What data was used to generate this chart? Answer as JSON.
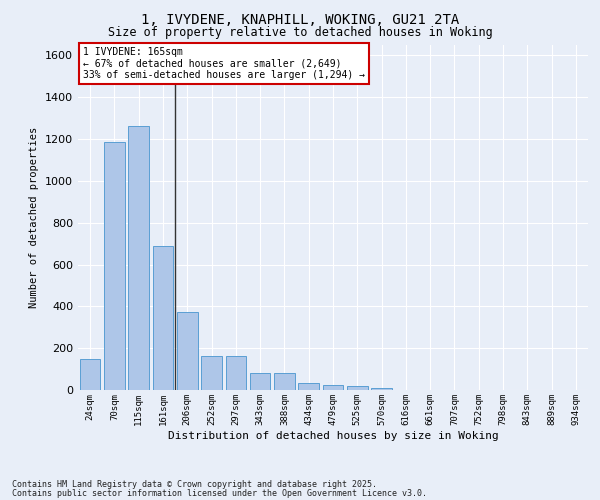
{
  "title_line1": "1, IVYDENE, KNAPHILL, WOKING, GU21 2TA",
  "title_line2": "Size of property relative to detached houses in Woking",
  "xlabel": "Distribution of detached houses by size in Woking",
  "ylabel": "Number of detached properties",
  "categories": [
    "24sqm",
    "70sqm",
    "115sqm",
    "161sqm",
    "206sqm",
    "252sqm",
    "297sqm",
    "343sqm",
    "388sqm",
    "434sqm",
    "479sqm",
    "525sqm",
    "570sqm",
    "616sqm",
    "661sqm",
    "707sqm",
    "752sqm",
    "798sqm",
    "843sqm",
    "889sqm",
    "934sqm"
  ],
  "values": [
    150,
    1185,
    1265,
    690,
    375,
    165,
    165,
    80,
    80,
    35,
    25,
    20,
    10,
    0,
    0,
    0,
    0,
    0,
    0,
    0,
    0
  ],
  "bar_color": "#aec6e8",
  "bar_edge_color": "#5a9fd4",
  "background_color": "#e8eef8",
  "grid_color": "#ffffff",
  "annotation_text": "1 IVYDENE: 165sqm\n← 67% of detached houses are smaller (2,649)\n33% of semi-detached houses are larger (1,294) →",
  "annotation_box_color": "#ffffff",
  "annotation_box_edge": "#cc0000",
  "property_line_x": 3.5,
  "ylim": [
    0,
    1650
  ],
  "yticks": [
    0,
    200,
    400,
    600,
    800,
    1000,
    1200,
    1400,
    1600
  ],
  "footnote1": "Contains HM Land Registry data © Crown copyright and database right 2025.",
  "footnote2": "Contains public sector information licensed under the Open Government Licence v3.0."
}
